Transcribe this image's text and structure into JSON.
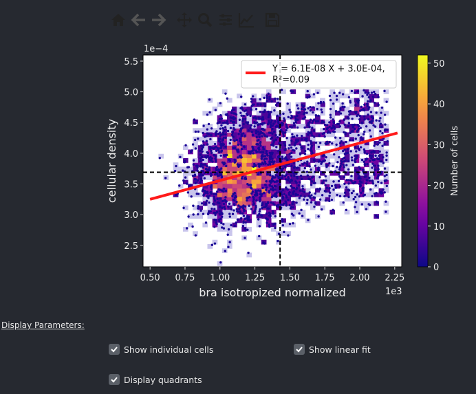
{
  "toolbar": {
    "buttons": [
      "home-icon",
      "back-arrow-icon",
      "forward-arrow-icon",
      "pan-icon",
      "zoom-icon",
      "configure-subplots-icon",
      "edit-axis-icon",
      "save-icon"
    ],
    "active_color": "#222222",
    "disabled_color": "#555555"
  },
  "chart_data": {
    "type": "heatmap",
    "xlabel": "bra isotropized normalized",
    "ylabel": "cellular density",
    "x_offset_label": "1e3",
    "y_offset_label": "1e−4",
    "xlim": [
      0.45,
      2.3
    ],
    "ylim": [
      2.15,
      5.6
    ],
    "x_ticks": [
      "0.50",
      "0.75",
      "1.00",
      "1.25",
      "1.50",
      "1.75",
      "2.00",
      "2.25"
    ],
    "y_ticks": [
      "2.5",
      "3.0",
      "3.5",
      "4.0",
      "4.5",
      "5.0",
      "5.5"
    ],
    "fit_line": {
      "x": [
        0.5,
        2.27
      ],
      "y": [
        3.25,
        4.33
      ],
      "color": "#ff1a1a"
    },
    "quadrant_lines": {
      "x": 1.43,
      "y": 3.69
    },
    "legend": [
      "Y = 6.1E-08 X + 3.0E-04,",
      "R²=0.09"
    ],
    "colorbar": {
      "label": "Number of cells",
      "min": 0,
      "max": 52,
      "ticks": [
        "0",
        "10",
        "20",
        "30",
        "40",
        "50"
      ],
      "colormap": "plasma"
    },
    "cell_points_color": "#1a0696",
    "density_peak": {
      "x": 1.15,
      "y": 3.7
    }
  },
  "params": {
    "title": "Display Parameters:",
    "show_cells": {
      "label": "Show individual cells",
      "checked": true
    },
    "show_fit": {
      "label": "Show linear fit",
      "checked": true
    },
    "show_quadrants": {
      "label": "Display quadrants",
      "checked": true
    }
  }
}
